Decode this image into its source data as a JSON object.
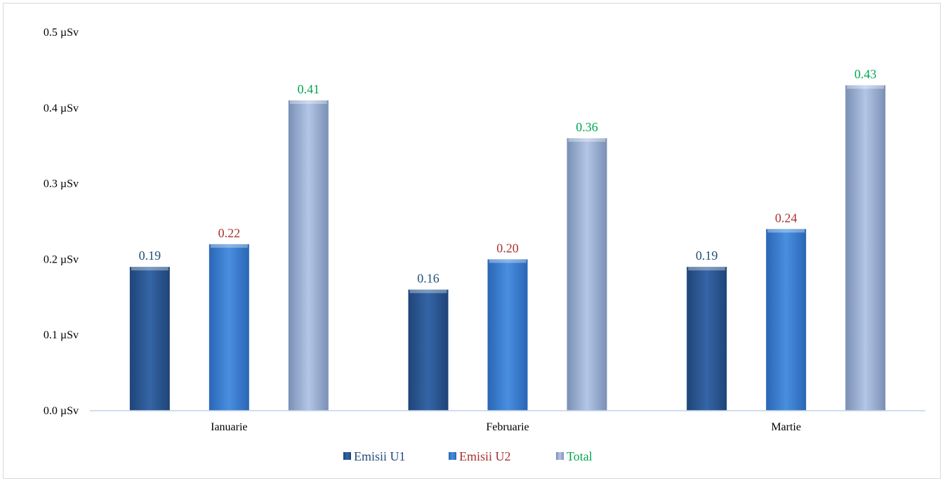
{
  "chart_data": {
    "type": "bar",
    "categories": [
      "Ianuarie",
      "Februarie",
      "Martie"
    ],
    "series": [
      {
        "name": "Emisii U1",
        "values": [
          0.19,
          0.16,
          0.19
        ],
        "color": "#2E5C99",
        "label_color": "#1F4E79"
      },
      {
        "name": "Emisii U2",
        "values": [
          0.22,
          0.2,
          0.24
        ],
        "color": "#3D7FD1",
        "label_color": "#A83232"
      },
      {
        "name": "Total",
        "values": [
          0.41,
          0.36,
          0.43
        ],
        "color": "#9DB2D8",
        "label_color": "#00A651"
      }
    ],
    "data_labels": [
      [
        "0.19",
        "0.16",
        "0.19"
      ],
      [
        "0.22",
        "0.20",
        "0.24"
      ],
      [
        "0.41",
        "0.36",
        "0.43"
      ]
    ],
    "y_ticks": [
      "0.0 µSv",
      "0.1 µSv",
      "0.2 µSv",
      "0.3 µSv",
      "0.4 µSv",
      "0.5 µSv"
    ],
    "y_tick_values": [
      0,
      0.1,
      0.2,
      0.3,
      0.4,
      0.5
    ],
    "ylim": [
      0,
      0.5
    ],
    "grid": false,
    "legend_position": "bottom",
    "title": "",
    "xlabel": "",
    "ylabel": ""
  }
}
